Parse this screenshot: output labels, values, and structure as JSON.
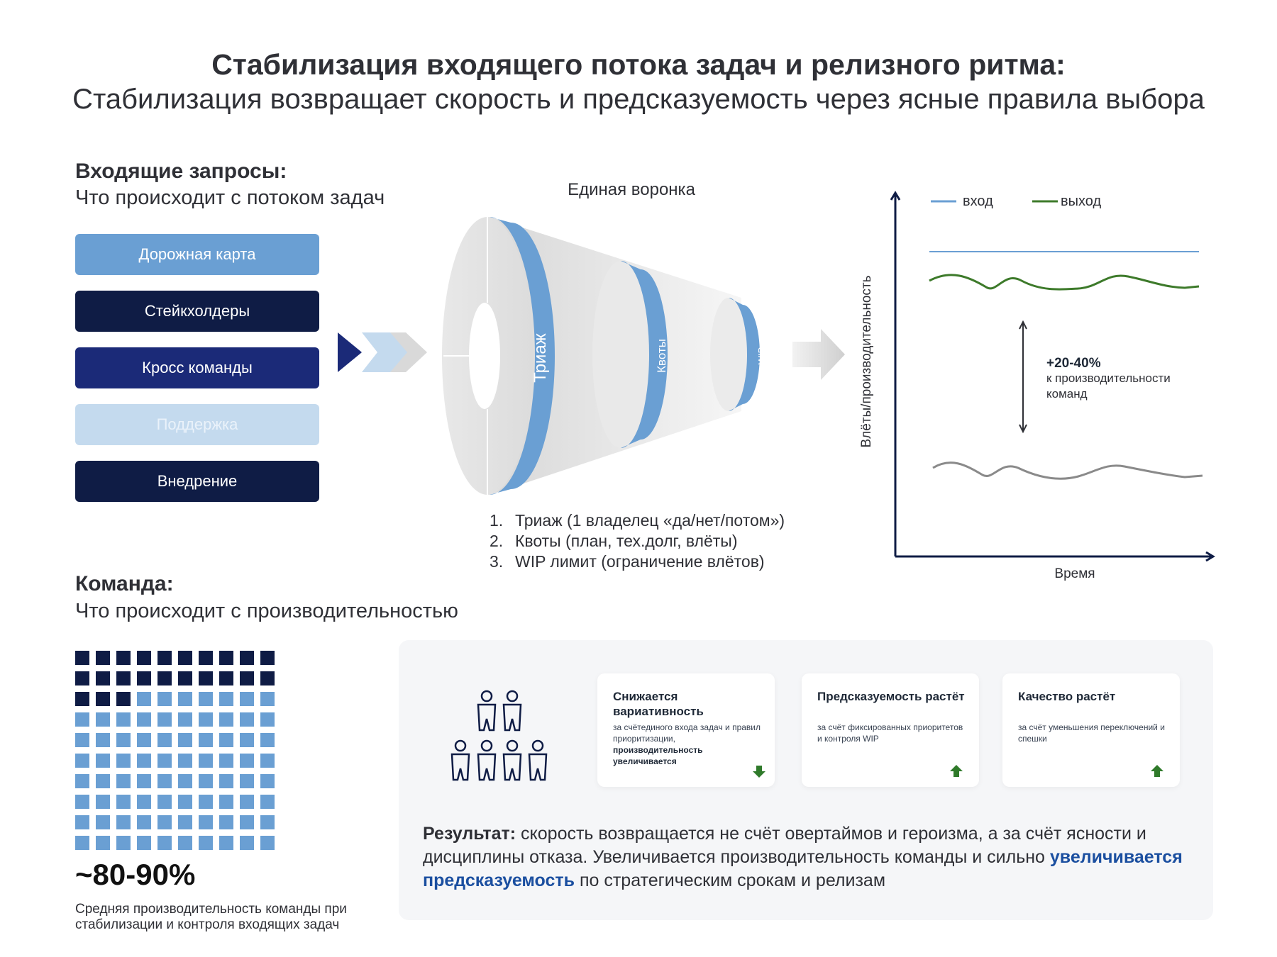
{
  "header": {
    "title": "Стабилизация входящего потока задач и релизного ритма:",
    "subtitle": "Стабилизация возвращает скорость и предсказуемость через ясные правила выбора"
  },
  "incoming": {
    "heading": "Входящие запросы:",
    "subheading": "Что происходит с потоком задач",
    "sources": [
      {
        "label": "Дорожная карта",
        "color": "#6a9fd3",
        "text_color": "#ffffff"
      },
      {
        "label": "Стейкхолдеры",
        "color": "#0f1c45",
        "text_color": "#ffffff"
      },
      {
        "label": "Кросс команды",
        "color": "#1b2a78",
        "text_color": "#ffffff"
      },
      {
        "label": "Поддержка",
        "color": "#c4daee",
        "text_color": "#eaf2fa"
      },
      {
        "label": "Внедрение",
        "color": "#0f1c45",
        "text_color": "#ffffff"
      }
    ]
  },
  "funnel": {
    "title": "Единая воронка",
    "stages": [
      "Триаж",
      "Квоты",
      "WIP"
    ],
    "steps": [
      {
        "num": "1.",
        "text": "Триаж (1 владелец «да/нет/потом»)"
      },
      {
        "num": "2.",
        "text": "Квоты (план, тех.долг, влёты)"
      },
      {
        "num": "3.",
        "text": "WIP лимит (ограничение влётов)"
      }
    ],
    "ring_color": "#6a9fd3"
  },
  "chart": {
    "ylabel": "Влёты/производительность",
    "xlabel": "Время",
    "legend": [
      {
        "label": "вход",
        "color": "#6a9fd3"
      },
      {
        "label": "выход",
        "color": "#3d7a2a"
      }
    ],
    "annotation_value": "+20-40%",
    "annotation_text": "к производительности команд",
    "baseline_color": "#8a8a8a"
  },
  "team": {
    "heading": "Команда:",
    "subheading": "Что происходит с производительностью",
    "grid_total": 100,
    "grid_dark": 23,
    "dark_color": "#0f1c45",
    "light_color": "#6a9fd3",
    "percent": "~80-90%",
    "note": "Средняя производительность команды при стабилизации и контроля входящих задач"
  },
  "cards": [
    {
      "heading": "Снижается вариативность",
      "text": "за счётединого входа задач и правил приоритизации,",
      "bold_text": "производительность увеличивается",
      "arrow": "down"
    },
    {
      "heading": "Предсказуемость растёт",
      "text": "за счёт фиксированных приоритетов и контроля WIP",
      "arrow": "up"
    },
    {
      "heading": "Качество растёт",
      "text": "за счёт уменьшения переключений и спешки",
      "arrow": "up"
    }
  ],
  "result": {
    "label": "Результат:",
    "text1": " скорость возвращается не счёт овертаймов и героизма, а за счёт ясности и дисциплины отказа. Увеличивается производительность команды и сильно ",
    "highlight": "увеличивается предсказуемость",
    "text2": " по стратегическим срокам и релизам",
    "highlight_color": "#1b4fa0"
  },
  "colors": {
    "arrow_green": "#2f7a2a",
    "panel_bg": "#f5f6f8"
  }
}
